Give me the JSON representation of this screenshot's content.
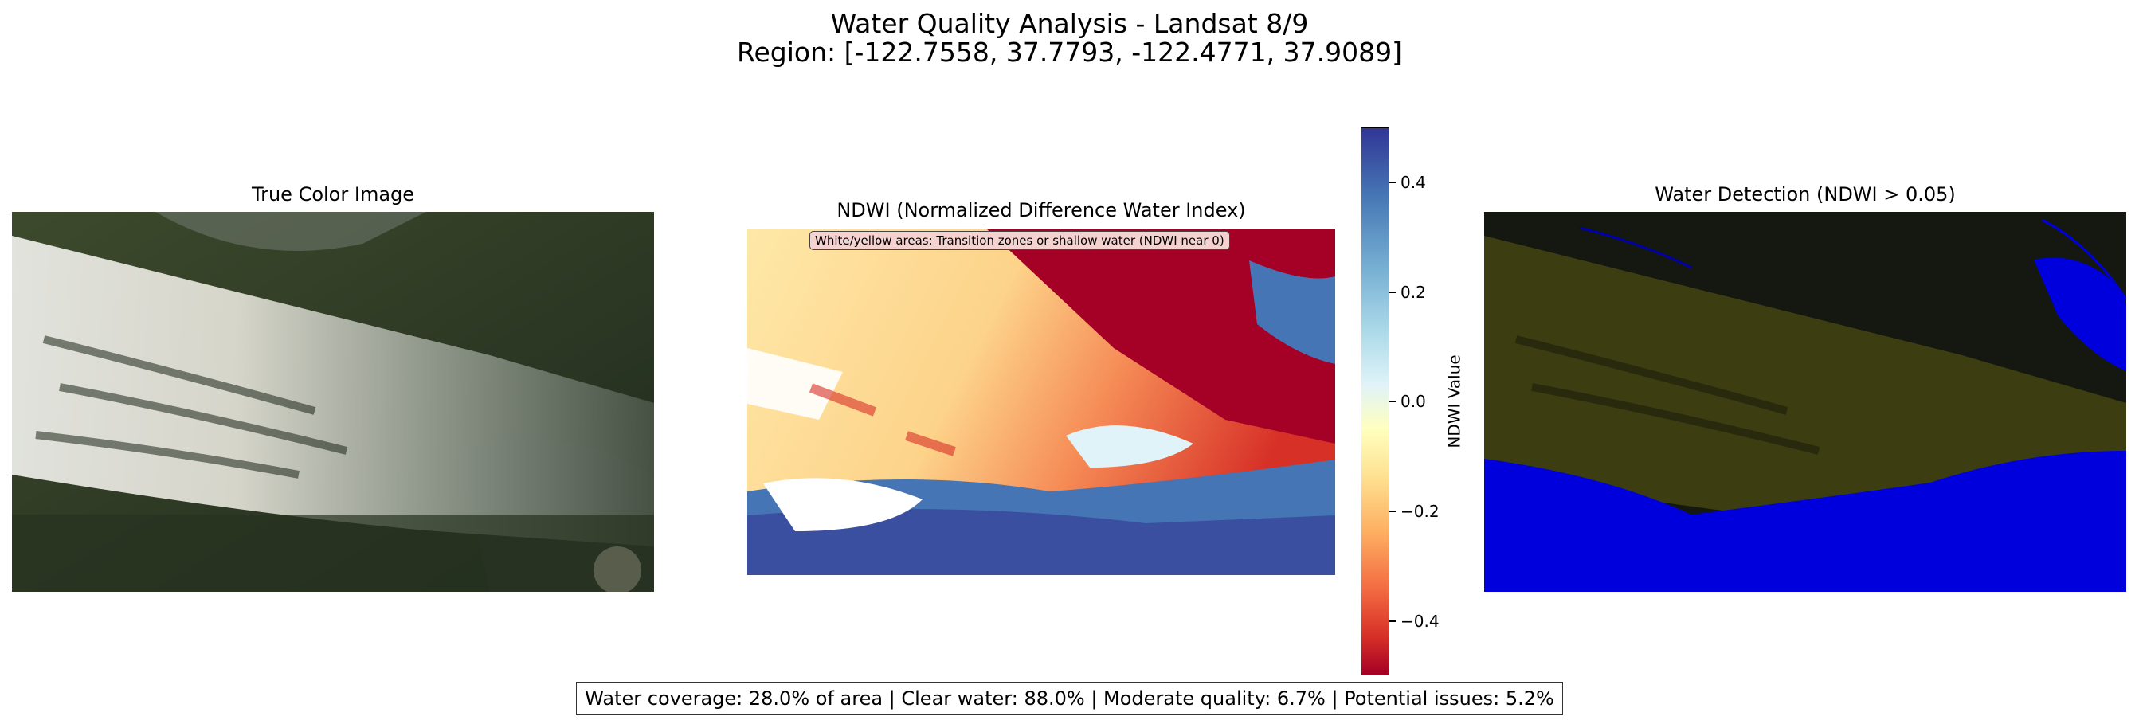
{
  "figure": {
    "title_line1": "Water Quality Analysis - Landsat 8/9",
    "title_line2": "Region: [-122.7558, 37.7793, -122.4771, 37.9089]"
  },
  "panels": {
    "true_color": {
      "title": "True Color Image"
    },
    "ndwi": {
      "title": "NDWI (Normalized Difference Water Index)",
      "note": "White/yellow areas: Transition zones or shallow water (NDWI near 0)"
    },
    "water_detection": {
      "title": "Water Detection (NDWI > 0.05)"
    }
  },
  "colorbar": {
    "label": "NDWI Value",
    "ticks": [
      "0.4",
      "0.2",
      "0.0",
      "−0.2",
      "−0.4"
    ],
    "colormap": [
      "#a50026",
      "#d73027",
      "#f46d43",
      "#fdae61",
      "#fee090",
      "#ffffbf",
      "#e0f3f8",
      "#abd9e9",
      "#74add1",
      "#4575b4",
      "#313695"
    ]
  },
  "stats_text": "Water coverage: 28.0% of area | Clear water: 88.0% | Moderate quality: 6.7% | Potential issues: 5.2%",
  "chart_data": {
    "type": "heatmap",
    "title": "Water Quality Analysis - Landsat 8/9",
    "subtitle": "Region: [-122.7558, 37.7793, -122.4771, 37.9089]",
    "colorbar_label": "NDWI Value",
    "colorbar_range": [
      -0.5,
      0.5
    ],
    "colorbar_ticks": [
      0.4,
      0.2,
      0.0,
      -0.2,
      -0.4
    ],
    "water_threshold": 0.05,
    "water_coverage_pct": 28.0,
    "clear_water_pct": 88.0,
    "moderate_quality_pct": 6.7,
    "potential_issues_pct": 5.2
  }
}
